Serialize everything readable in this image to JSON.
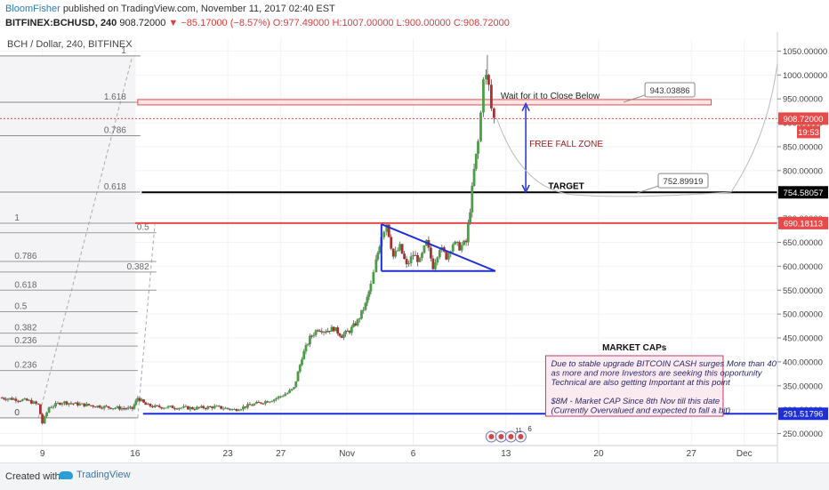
{
  "header": {
    "author": "BloomFisher",
    "published": "published on TradingView.com, November 11, 2017 02:40 EST",
    "symbol": "BITFINEX:BCHUSD, 240",
    "last": "908.72000",
    "change": "−85.17000 (−8.57%)",
    "open": "O:977.49000",
    "high": "H:1007.00000",
    "low": "L:900.00000",
    "close": "C:908.72000"
  },
  "chart_data": {
    "type": "candlestick",
    "title": "BCH / Dollar, 240, BITFINEX",
    "ylim": [
      225,
      1075
    ],
    "y_ticks": [
      250,
      300,
      350,
      400,
      450,
      500,
      550,
      600,
      650,
      700,
      750,
      800,
      850,
      900,
      950,
      1000,
      1050
    ],
    "y_tick_labels": [
      "250.00000",
      "300.00000",
      "350.00000",
      "400.00000",
      "450.00000",
      "500.00000",
      "550.00000",
      "600.00000",
      "650.00000",
      "700.00000",
      "750.00000",
      "800.00000",
      "850.00000",
      "900.00000",
      "950.00000",
      "1000.00000",
      "1050.00000"
    ],
    "x_ticks": [
      {
        "label": "9",
        "day": 0
      },
      {
        "label": "16",
        "day": 7
      },
      {
        "label": "23",
        "day": 14
      },
      {
        "label": "27",
        "day": 18
      },
      {
        "label": "Nov",
        "day": 23
      },
      {
        "label": "6",
        "day": 28
      },
      {
        "label": "13",
        "day": 35
      },
      {
        "label": "20",
        "day": 42
      },
      {
        "label": "27",
        "day": 49
      },
      {
        "label": "Dec",
        "day": 53
      }
    ],
    "x_range_days": [
      -3.2,
      55.5
    ],
    "price_path": [
      [
        -3.2,
        325
      ],
      [
        -2,
        322
      ],
      [
        -1,
        318
      ],
      [
        -0.3,
        310
      ],
      [
        0,
        272
      ],
      [
        0.5,
        305
      ],
      [
        1.5,
        316
      ],
      [
        2.5,
        312
      ],
      [
        4,
        308
      ],
      [
        5,
        305
      ],
      [
        6,
        303
      ],
      [
        6.8,
        302
      ],
      [
        7.2,
        325
      ],
      [
        7.8,
        310
      ],
      [
        8.5,
        306
      ],
      [
        10,
        305
      ],
      [
        11.5,
        303
      ],
      [
        13,
        306
      ],
      [
        14,
        302
      ],
      [
        14.5,
        300
      ],
      [
        15.5,
        308
      ],
      [
        16.5,
        315
      ],
      [
        17.5,
        322
      ],
      [
        18.5,
        335
      ],
      [
        19,
        345
      ],
      [
        19.6,
        410
      ],
      [
        20.2,
        450
      ],
      [
        20.8,
        470
      ],
      [
        21.4,
        465
      ],
      [
        22,
        470
      ],
      [
        22.6,
        455
      ],
      [
        23.2,
        465
      ],
      [
        23.8,
        485
      ],
      [
        24.4,
        520
      ],
      [
        24.8,
        560
      ],
      [
        25.2,
        610
      ],
      [
        25.6,
        665
      ],
      [
        26,
        690
      ],
      [
        26.5,
        620
      ],
      [
        27,
        640
      ],
      [
        27.5,
        600
      ],
      [
        28,
        625
      ],
      [
        28.5,
        610
      ],
      [
        29,
        650
      ],
      [
        29.5,
        600
      ],
      [
        30,
        640
      ],
      [
        30.5,
        620
      ],
      [
        31,
        648
      ],
      [
        31.5,
        640
      ],
      [
        32,
        650
      ],
      [
        32.3,
        720
      ],
      [
        32.6,
        800
      ],
      [
        32.9,
        860
      ],
      [
        33.1,
        920
      ],
      [
        33.3,
        1000
      ],
      [
        33.5,
        995
      ],
      [
        33.7,
        975
      ],
      [
        33.9,
        930
      ],
      [
        34.1,
        908.72
      ]
    ],
    "horizontal_lines": [
      {
        "price": 943.03886,
        "color": "#e84a4a",
        "style": "band",
        "label": "943.03886",
        "annotation": "Wait for it to Close Below"
      },
      {
        "price": 754.58057,
        "color": "#000000",
        "style": "solid",
        "label": "754.58057",
        "annotation": "TARGET"
      },
      {
        "price": 690.18113,
        "color": "#e84a4a",
        "style": "solid",
        "label": "690.18113"
      },
      {
        "price": 291.51796,
        "color": "#1f2fd6",
        "style": "solid",
        "label": "291.51796"
      },
      {
        "price": 908.72,
        "color": "#e84a4a",
        "style": "dotted",
        "label": "908.72000"
      }
    ],
    "price_countdown": "19:53",
    "callouts": [
      {
        "label": "752.89919",
        "price": 752.89919
      },
      {
        "label": "943.03886",
        "price": 943.03886
      }
    ],
    "fib_levels_major": [
      {
        "label": "1",
        "price": 1040
      },
      {
        "label": "1.618",
        "price": 943
      },
      {
        "label": "0.786",
        "price": 873
      },
      {
        "label": "0.618",
        "price": 755
      }
    ],
    "fib_levels_minor": [
      {
        "label": "1",
        "price": 690
      },
      {
        "label": "0.5",
        "price": 670
      },
      {
        "label": "0.786",
        "price": 610
      },
      {
        "label": "0.382",
        "price": 588
      },
      {
        "label": "0.618",
        "price": 550
      },
      {
        "label": "0.5",
        "price": 505
      },
      {
        "label": "0.382",
        "price": 460
      },
      {
        "label": "0.236",
        "price": 433
      },
      {
        "label": "0.236",
        "price": 382
      },
      {
        "label": "0",
        "price": 283
      },
      {
        "label": "0",
        "price": 283
      }
    ],
    "annotations": {
      "free_fall": "FREE FALL ZONE",
      "market_caps_title": "MARKET CAPs",
      "market_caps_lines": [
        "Due to stable upgrade BITCOIN CASH surges More than 40%",
        "as more and more Investors are seeking this opportunity",
        "Technical are also getting Important at this point",
        "",
        "$8M - Market CAP Since 8th Nov till this date",
        "(Currently Overvalued and expected to fall a bit)"
      ],
      "events_count": "11",
      "events_count2": "6"
    },
    "colors": {
      "up": "#4a9e44",
      "down": "#a83232",
      "triangle": "#1f2fd6",
      "arrow": "#1f2fd6"
    }
  },
  "footer": {
    "created_with": "Created with",
    "brand": "TradingView"
  }
}
